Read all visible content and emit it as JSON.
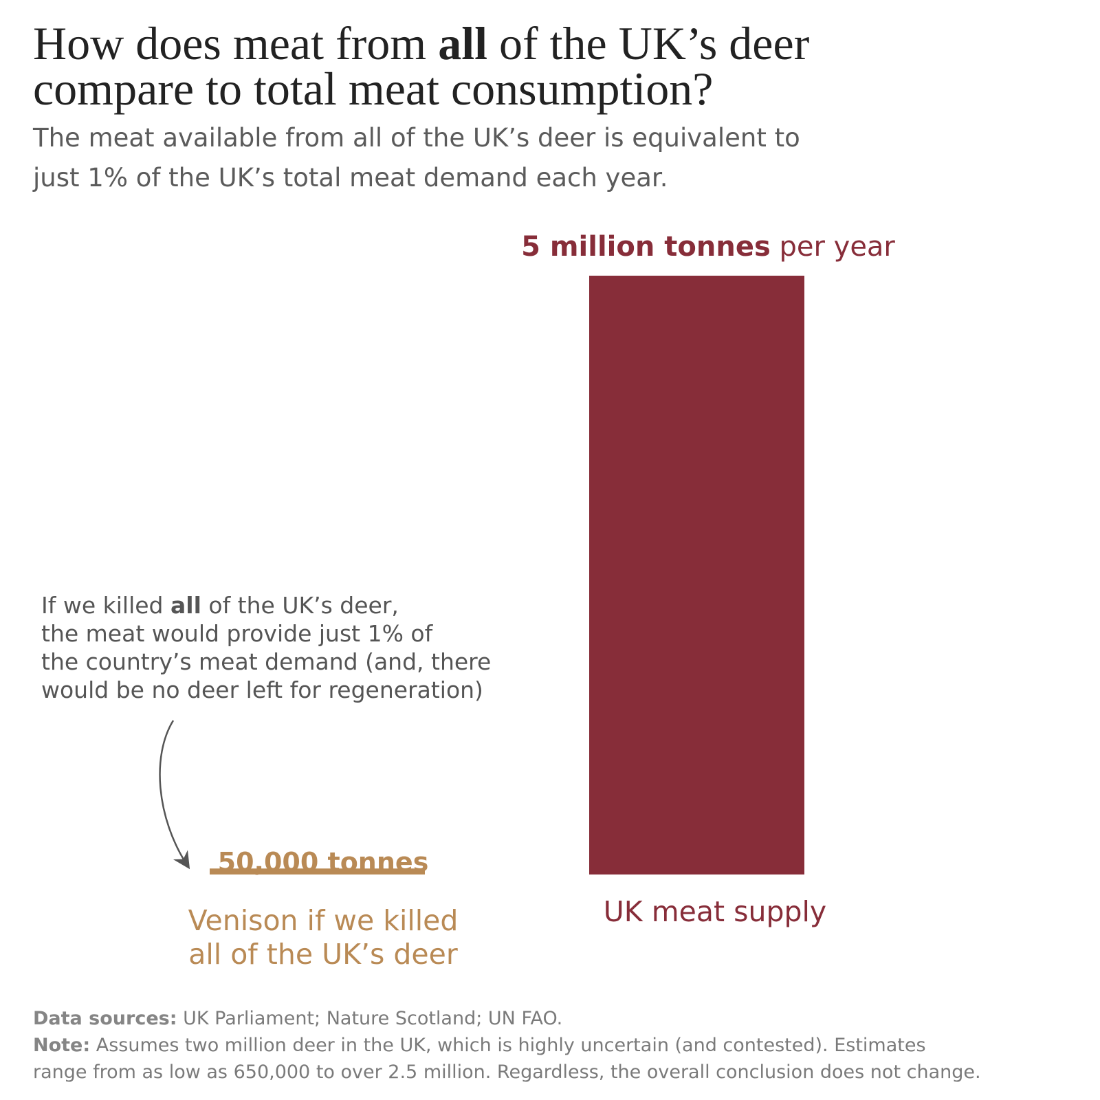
{
  "title": {
    "part1": "How does meat from ",
    "bold": "all",
    "part2": " of the UK’s deer",
    "line2": "compare to total meat consumption?"
  },
  "subtitle": {
    "line1": "The meat available from all of the UK’s deer is equivalent to",
    "line2": "just 1% of the UK’s total meat demand each year."
  },
  "annotation": {
    "line1_pre": "If we killed ",
    "line1_bold": "all",
    "line1_post": " of the UK’s deer,",
    "line2": "the meat would provide just 1% of",
    "line3": "the country’s meat demand (and, there",
    "line4": "would be no deer left for regeneration)"
  },
  "chart_data": {
    "type": "bar",
    "unit": "tonnes per year",
    "categories": [
      "Venison if we killed all of the UK’s deer",
      "UK meat supply"
    ],
    "values": [
      50000,
      5000000
    ],
    "ylim": [
      0,
      5000000
    ],
    "colors": [
      "#b98a55",
      "#872d39"
    ],
    "value_labels": [
      {
        "bold": "50,000 tonnes",
        "rest": ""
      },
      {
        "bold": "5 million tonnes",
        "rest": " per year"
      }
    ],
    "category_labels": [
      {
        "line1": "Venison if we killed",
        "line2": "all of the UK’s deer"
      },
      {
        "line1": "UK meat supply"
      }
    ]
  },
  "footer": {
    "sources_label": "Data sources:",
    "sources_text": " UK Parliament; Nature Scotland; UN FAO.",
    "note_label": "Note:",
    "note_text1": " Assumes two million deer in the UK, which is highly uncertain (and contested). Estimates",
    "note_text2": "range from as low as 650,000 to over 2.5 million. Regardless, the overall conclusion does not change."
  },
  "colors": {
    "uk_meat": "#872d39",
    "venison": "#b98a55",
    "text": "#222222",
    "muted": "#5b5b5b"
  }
}
